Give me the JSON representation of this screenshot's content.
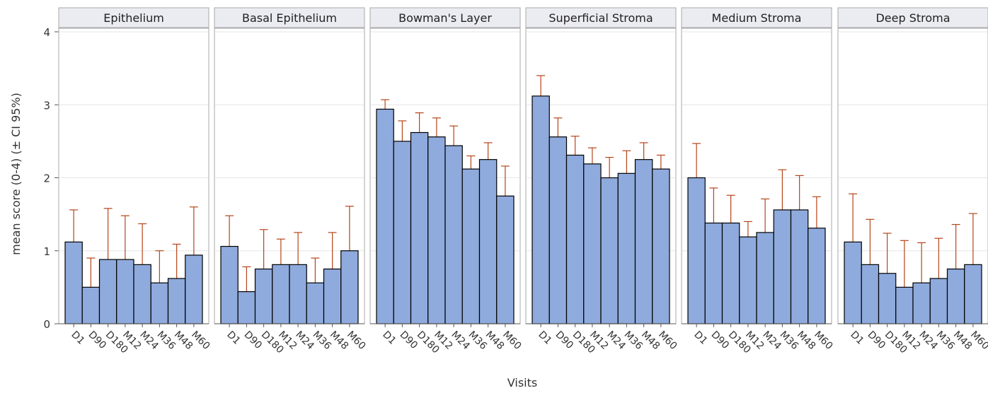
{
  "chart_data": {
    "type": "bar",
    "ylabel": "mean score (0-4) (± CI 95%)",
    "xlabel": "Visits",
    "ylim": [
      0,
      4
    ],
    "yticks": [
      "0",
      "1",
      "2",
      "3",
      "4"
    ],
    "categories": [
      "D1",
      "D90",
      "D180",
      "M12",
      "M24",
      "M36",
      "M48",
      "M60"
    ],
    "grid": true,
    "colors": {
      "bar_fill": "#8faadc",
      "bar_stroke": "#000000",
      "error_bar": "#b5451b",
      "panel_header_bg": "#ebebf2",
      "grid": "#e6e6e6",
      "panel_border": "#a9a9a9"
    },
    "panels": [
      {
        "name": "Epithelium",
        "values": [
          1.12,
          0.5,
          0.88,
          0.88,
          0.81,
          0.56,
          0.62,
          0.94
        ],
        "upper": [
          1.56,
          0.9,
          1.58,
          1.48,
          1.37,
          1.0,
          1.09,
          1.6
        ]
      },
      {
        "name": "Basal Epithelium",
        "values": [
          1.06,
          0.44,
          0.75,
          0.81,
          0.81,
          0.56,
          0.75,
          1.0
        ],
        "upper": [
          1.48,
          0.78,
          1.29,
          1.16,
          1.25,
          0.9,
          1.25,
          1.61
        ]
      },
      {
        "name": "Bowman's Layer",
        "values": [
          2.94,
          2.5,
          2.62,
          2.56,
          2.44,
          2.12,
          2.25,
          1.75
        ],
        "upper": [
          3.07,
          2.78,
          2.89,
          2.82,
          2.71,
          2.3,
          2.48,
          2.16
        ]
      },
      {
        "name": "Superficial Stroma",
        "values": [
          3.12,
          2.56,
          2.31,
          2.19,
          2.0,
          2.06,
          2.25,
          2.12
        ],
        "upper": [
          3.4,
          2.82,
          2.57,
          2.41,
          2.28,
          2.37,
          2.48,
          2.31
        ]
      },
      {
        "name": "Medium Stroma",
        "values": [
          2.0,
          1.38,
          1.38,
          1.19,
          1.25,
          1.56,
          1.56,
          1.31
        ],
        "upper": [
          2.47,
          1.86,
          1.76,
          1.4,
          1.71,
          2.11,
          2.03,
          1.74
        ]
      },
      {
        "name": "Deep Stroma",
        "values": [
          1.12,
          0.81,
          0.69,
          0.5,
          0.56,
          0.62,
          0.75,
          0.81
        ],
        "upper": [
          1.78,
          1.43,
          1.24,
          1.14,
          1.11,
          1.17,
          1.36,
          1.51
        ]
      }
    ]
  }
}
